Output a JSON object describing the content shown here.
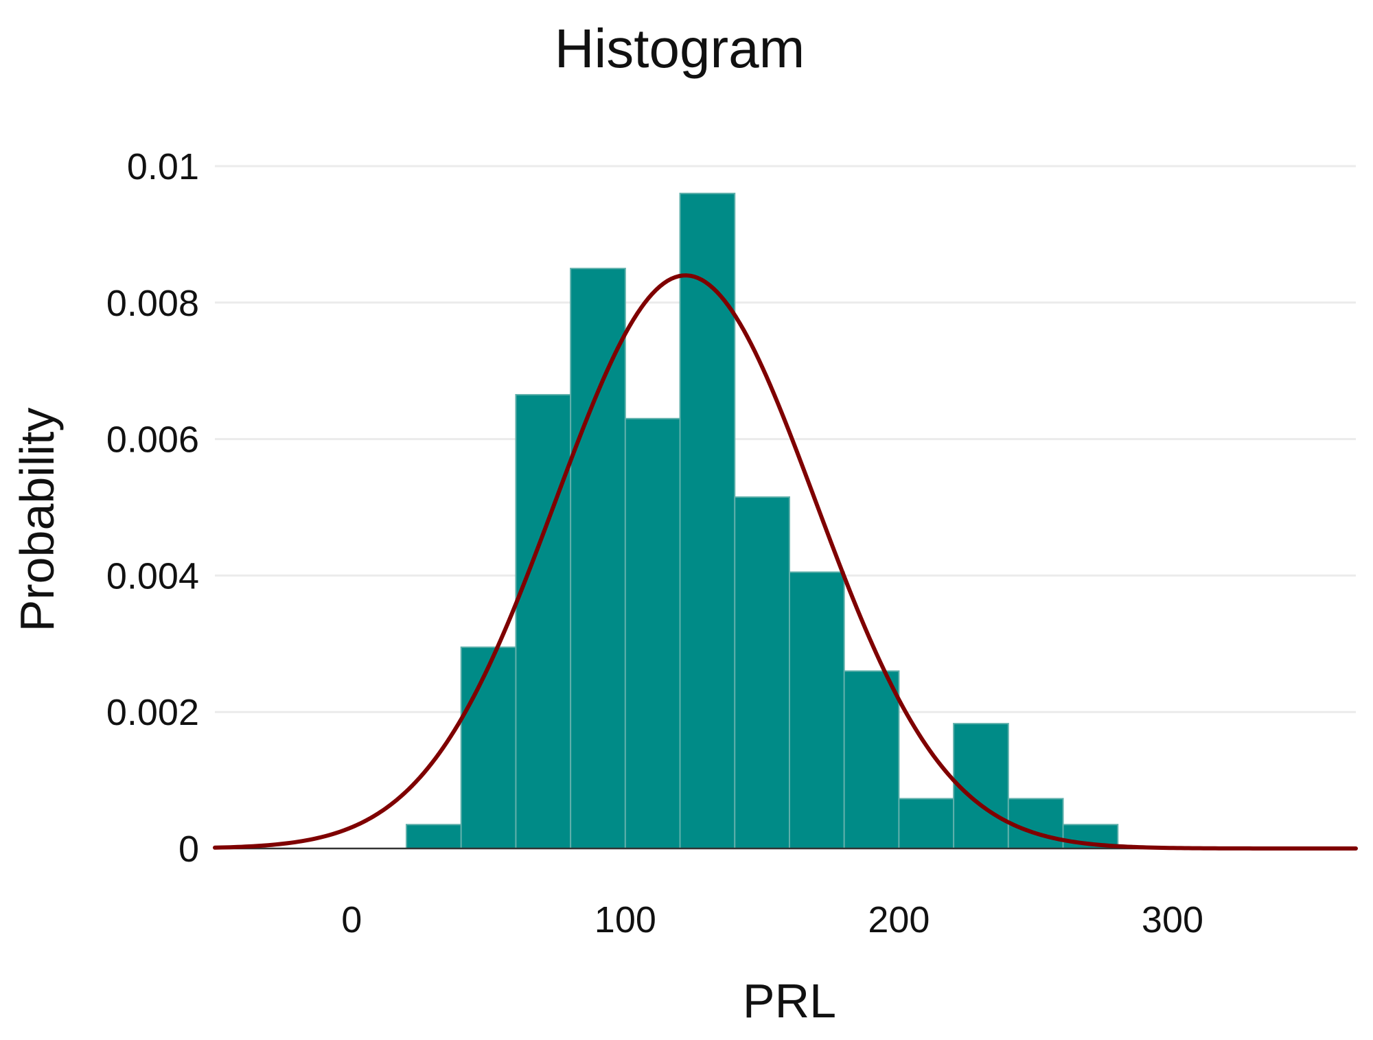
{
  "chart_data": {
    "type": "bar",
    "title": "Histogram",
    "xlabel": "PRL",
    "ylabel": "Probability",
    "xlim": [
      -50,
      367
    ],
    "ylim": [
      0,
      0.01
    ],
    "x_ticks": [
      0,
      100,
      200,
      300
    ],
    "x_tick_labels": [
      "0",
      "100",
      "200",
      "300"
    ],
    "y_ticks": [
      0,
      0.002,
      0.004,
      0.006,
      0.008,
      0.01
    ],
    "y_tick_labels": [
      "0",
      "0.002",
      "0.004",
      "0.006",
      "0.008",
      "0.01"
    ],
    "grid": "horizontal",
    "bins": [
      {
        "x0": 20,
        "x1": 40,
        "density": 0.00035
      },
      {
        "x0": 40,
        "x1": 60,
        "density": 0.00295
      },
      {
        "x0": 60,
        "x1": 80,
        "density": 0.00665
      },
      {
        "x0": 80,
        "x1": 100,
        "density": 0.0085
      },
      {
        "x0": 100,
        "x1": 120,
        "density": 0.0063
      },
      {
        "x0": 120,
        "x1": 140,
        "density": 0.0096
      },
      {
        "x0": 140,
        "x1": 160,
        "density": 0.00515
      },
      {
        "x0": 160,
        "x1": 180,
        "density": 0.00405
      },
      {
        "x0": 180,
        "x1": 200,
        "density": 0.0026
      },
      {
        "x0": 200,
        "x1": 220,
        "density": 0.00073
      },
      {
        "x0": 220,
        "x1": 240,
        "density": 0.00183
      },
      {
        "x0": 240,
        "x1": 260,
        "density": 0.00073
      },
      {
        "x0": 260,
        "x1": 280,
        "density": 0.00035
      }
    ],
    "density_curve": {
      "type": "normal",
      "mean": 122,
      "sd": 47.5
    },
    "colors": {
      "bar_fill": "#008b87",
      "bar_edge": "#5fb0ab",
      "curve": "#7f0000",
      "grid": "#ebebeb"
    }
  }
}
